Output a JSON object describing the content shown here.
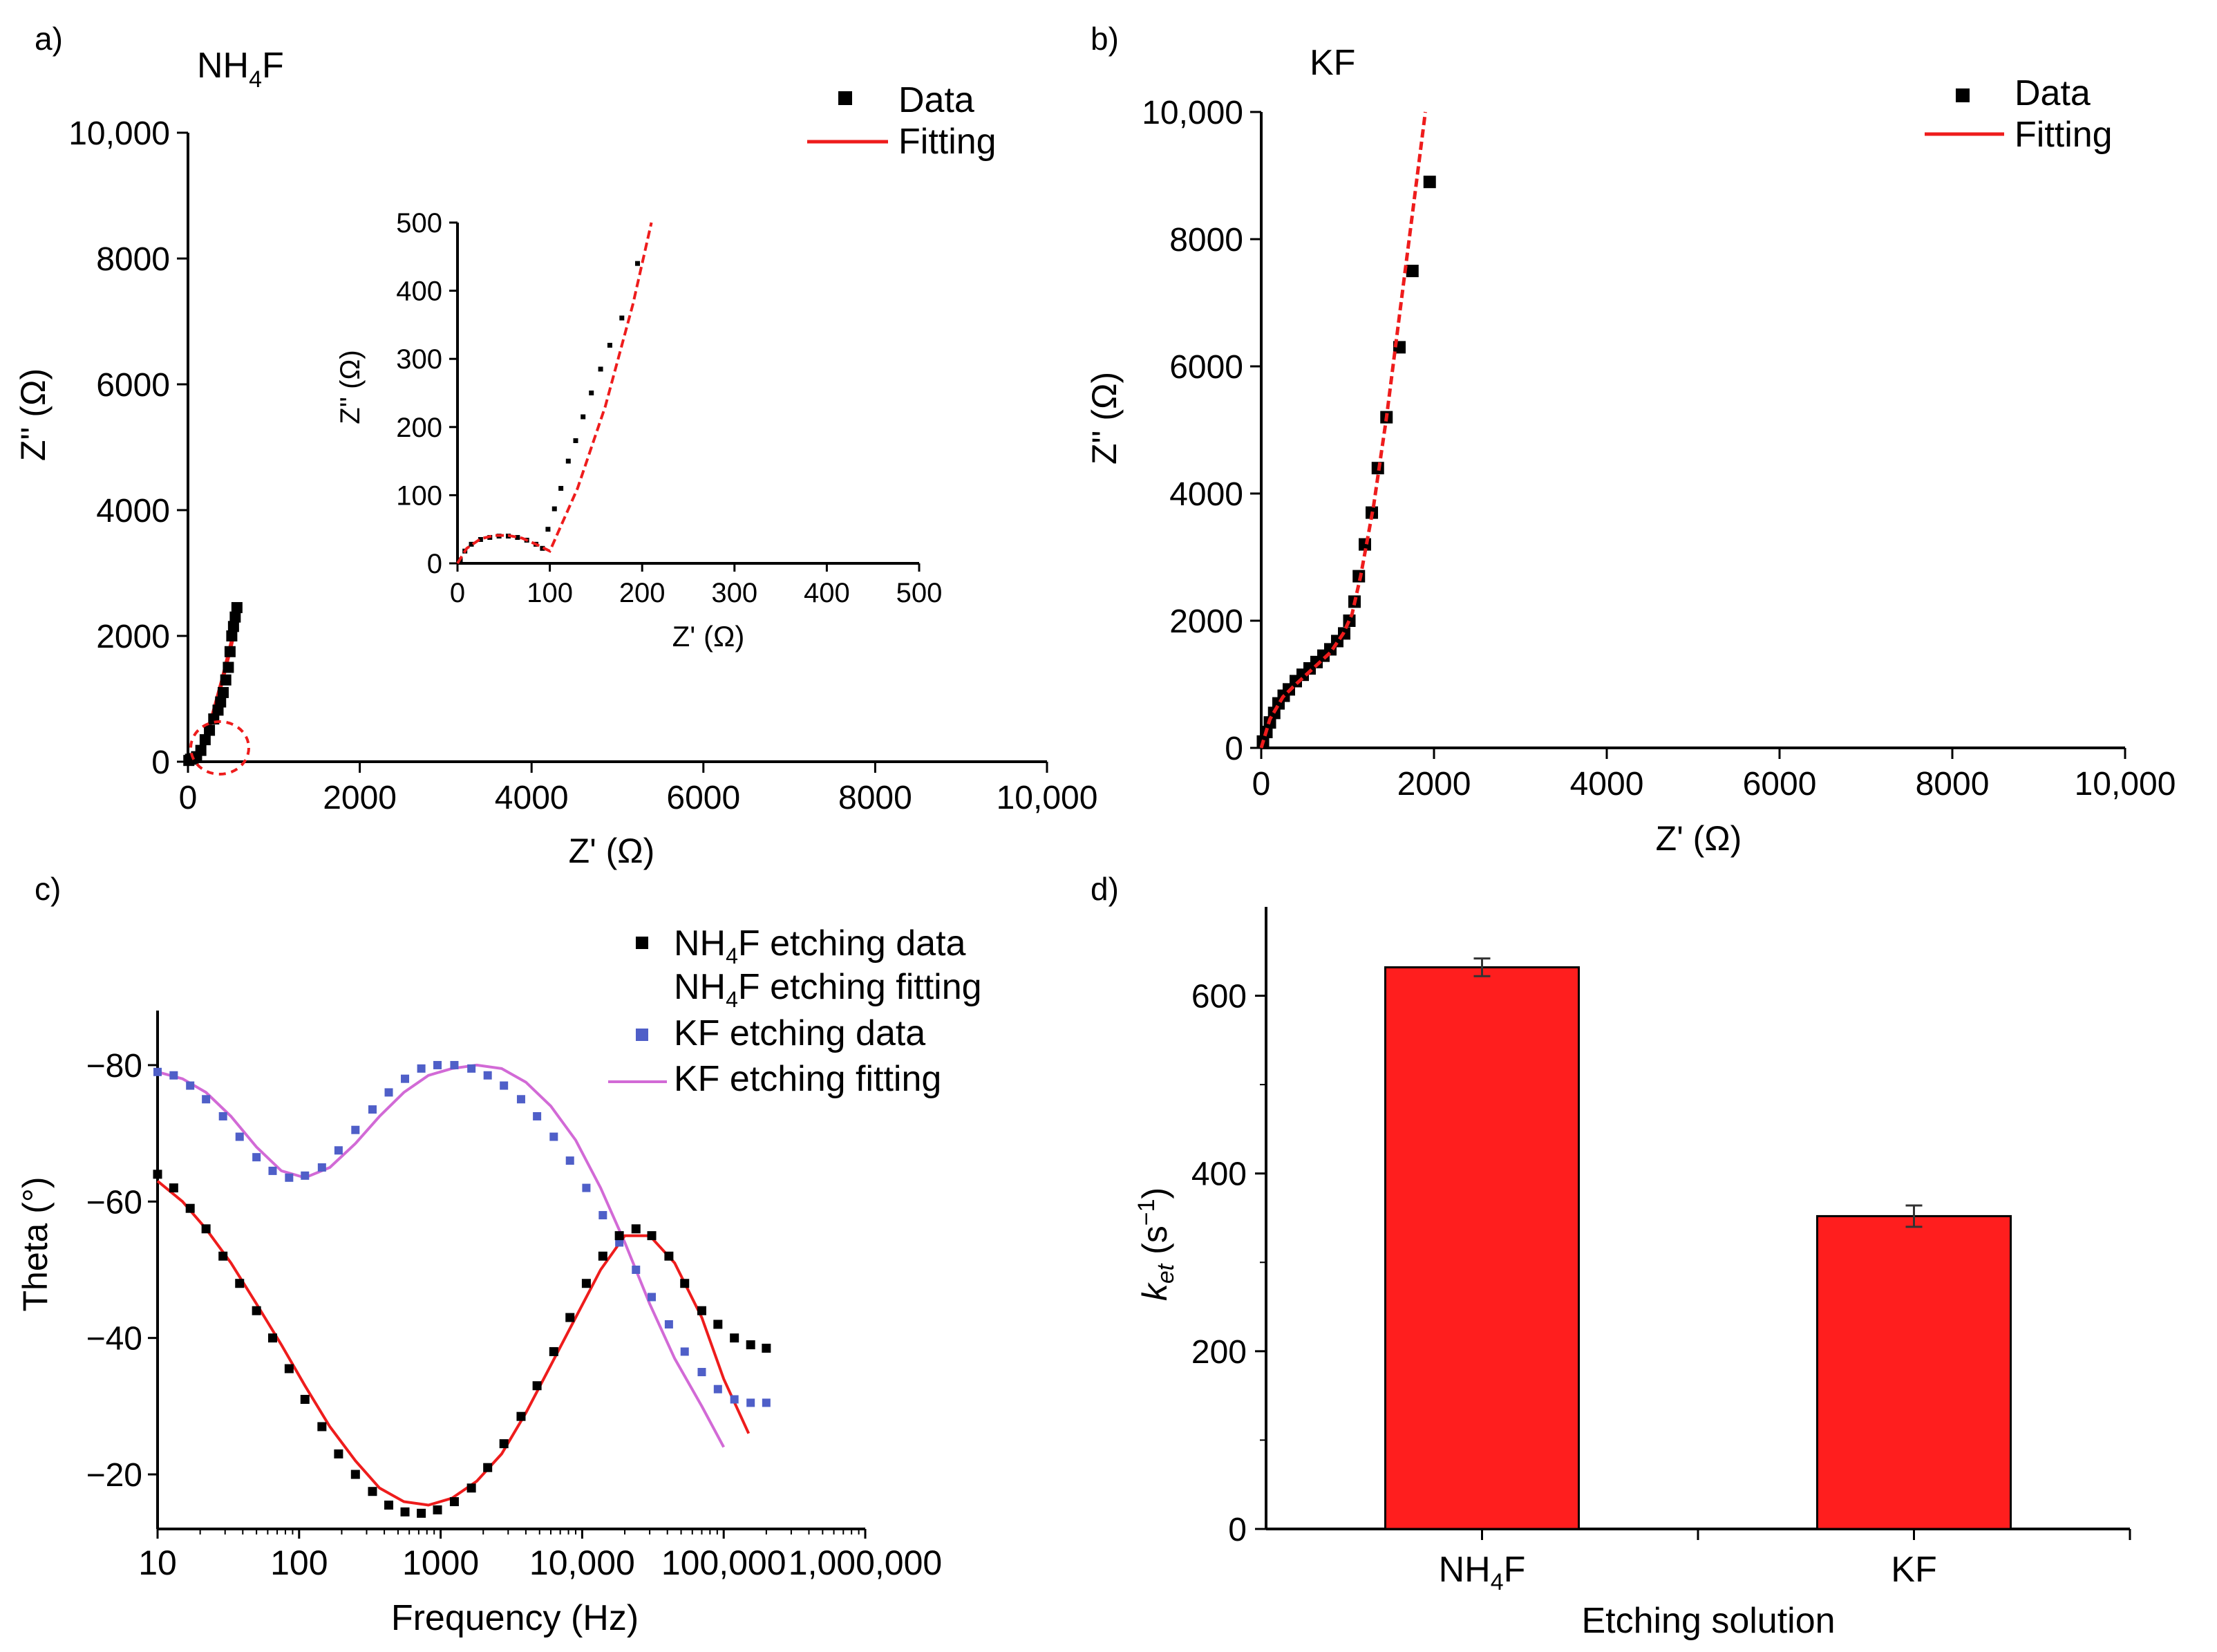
{
  "colors": {
    "fit_red": "#ee1c1c",
    "kf_blue": "#4f5fc8",
    "kf_fit_pink": "#d26ad6",
    "bar_red": "#ff1e1e",
    "black": "#000000"
  },
  "chart_data": [
    {
      "id": "a",
      "panel_label": "a)",
      "type": "scatter",
      "title": "NH₄F",
      "title_main": "NH",
      "title_sub": "4",
      "title_end": "F",
      "xlabel": "Z' (Ω)",
      "ylabel": "Z'' (Ω)",
      "xlim": [
        0,
        10000
      ],
      "ylim": [
        0,
        10000
      ],
      "xticks": [
        0,
        2000,
        4000,
        6000,
        8000,
        10000
      ],
      "yticks": [
        0,
        2000,
        4000,
        6000,
        8000,
        10000
      ],
      "xtick_labels": [
        "0",
        "2000",
        "4000",
        "6000",
        "8000",
        "10,000"
      ],
      "ytick_labels": [
        "0",
        "2000",
        "4000",
        "6000",
        "8000",
        "10,000"
      ],
      "legend": [
        "Data",
        "Fitting"
      ],
      "legend_position": "top-right",
      "annotation": "red dashed circle marks the zoomed region shown in the inset",
      "series": [
        {
          "name": "Data",
          "marker": "square",
          "color": "#000000",
          "x": [
            10,
            30,
            60,
            100,
            150,
            200,
            250,
            300,
            350,
            380,
            410,
            440,
            470,
            490,
            510,
            530,
            550,
            570
          ],
          "y": [
            20,
            40,
            50,
            80,
            180,
            350,
            500,
            680,
            820,
            950,
            1100,
            1300,
            1500,
            1750,
            2000,
            2150,
            2300,
            2450
          ]
        },
        {
          "name": "Fitting",
          "line": "solid",
          "color": "#ee1c1c",
          "x": [
            10,
            50,
            100,
            200,
            300,
            400,
            500,
            600
          ],
          "y": [
            20,
            40,
            40,
            350,
            800,
            1300,
            1850,
            2450
          ]
        }
      ],
      "inset": {
        "xlabel": "Z' (Ω)",
        "ylabel": "Z'' (Ω)",
        "xlim": [
          0,
          500
        ],
        "ylim": [
          0,
          500
        ],
        "xticks": [
          0,
          100,
          200,
          300,
          400,
          500
        ],
        "yticks": [
          0,
          100,
          200,
          300,
          400,
          500
        ],
        "series": [
          {
            "name": "Data",
            "marker": "square",
            "color": "#000000",
            "x": [
              3,
              8,
              15,
              25,
              35,
              45,
              55,
              65,
              75,
              85,
              92,
              98,
              105,
              112,
              120,
              128,
              136,
              145,
              155,
              165,
              178,
              195
            ],
            "y": [
              5,
              18,
              28,
              35,
              38,
              40,
              40,
              38,
              34,
              28,
              22,
              50,
              80,
              110,
              150,
              180,
              215,
              250,
              285,
              320,
              360,
              440
            ]
          },
          {
            "name": "Fitting",
            "line": "dashed",
            "color": "#ee1c1c",
            "x": [
              0,
              10,
              25,
              40,
              55,
              70,
              85,
              100,
              130,
              160,
              190,
              210
            ],
            "y": [
              0,
              22,
              36,
              41,
              41,
              37,
              28,
              18,
              110,
              230,
              380,
              500
            ]
          }
        ]
      }
    },
    {
      "id": "b",
      "panel_label": "b)",
      "type": "scatter",
      "title": "KF",
      "xlabel": "Z' (Ω)",
      "ylabel": "Z'' (Ω)",
      "xlim": [
        0,
        10000
      ],
      "ylim": [
        0,
        10000
      ],
      "xticks": [
        0,
        2000,
        4000,
        6000,
        8000,
        10000
      ],
      "yticks": [
        0,
        2000,
        4000,
        6000,
        8000,
        10000
      ],
      "xtick_labels": [
        "0",
        "2000",
        "4000",
        "6000",
        "8000",
        "10,000"
      ],
      "ytick_labels": [
        "0",
        "2000",
        "4000",
        "6000",
        "8000",
        "10,000"
      ],
      "legend": [
        "Data",
        "Fitting"
      ],
      "legend_position": "top-right",
      "series": [
        {
          "name": "Data",
          "marker": "square",
          "color": "#000000",
          "x": [
            20,
            60,
            100,
            150,
            200,
            260,
            320,
            400,
            480,
            560,
            640,
            720,
            800,
            880,
            960,
            1020,
            1080,
            1130,
            1200,
            1280,
            1350,
            1450,
            1600,
            1750,
            1950
          ],
          "y": [
            100,
            250,
            400,
            550,
            700,
            820,
            920,
            1050,
            1150,
            1250,
            1350,
            1450,
            1550,
            1680,
            1800,
            2000,
            2300,
            2700,
            3200,
            3700,
            4400,
            5200,
            6300,
            7500,
            8900
          ]
        },
        {
          "name": "Fitting",
          "line": "dashed",
          "color": "#ee1c1c",
          "x": [
            0,
            100,
            250,
            400,
            600,
            800,
            950,
            1050,
            1150,
            1300,
            1450,
            1600,
            1750,
            1900
          ],
          "y": [
            0,
            450,
            800,
            1000,
            1250,
            1500,
            1800,
            2100,
            2700,
            3800,
            5200,
            6800,
            8400,
            10000
          ]
        }
      ]
    },
    {
      "id": "c",
      "panel_label": "c)",
      "type": "line",
      "xlabel": "Frequency (Hz)",
      "ylabel": "Theta (°)",
      "x_scale": "log",
      "xlim": [
        10,
        1000000
      ],
      "ylim": [
        -88,
        -12
      ],
      "xticks": [
        10,
        100,
        1000,
        10000,
        100000,
        1000000
      ],
      "xtick_labels": [
        "10",
        "100",
        "1000",
        "10,000",
        "100,000",
        "1,000,000"
      ],
      "yticks": [
        -80,
        -60,
        -40,
        -20
      ],
      "ytick_labels": [
        "−80",
        "−60",
        "−40",
        "−20"
      ],
      "legend": [
        "NH₄F etching data",
        "NH₄F etching fitting",
        "KF etching data",
        "KF etching fitting"
      ],
      "legend_position": "top-right",
      "series": [
        {
          "name": "NH₄F etching data",
          "label_main": "NH",
          "label_sub": "4",
          "label_end": "F etching data",
          "marker": "square",
          "color": "#000000",
          "x": [
            10,
            13,
            17,
            22,
            29,
            38,
            50,
            65,
            85,
            110,
            145,
            190,
            250,
            330,
            430,
            560,
            730,
            950,
            1250,
            1650,
            2150,
            2800,
            3700,
            4800,
            6300,
            8200,
            10700,
            14000,
            18300,
            24000,
            31000,
            41000,
            53000,
            70000,
            91000,
            119000,
            155000,
            200000
          ],
          "y": [
            -64,
            -62,
            -59,
            -56,
            -52,
            -48,
            -44,
            -40,
            -35.5,
            -31,
            -27,
            -23,
            -20,
            -17.5,
            -15.5,
            -14.5,
            -14.3,
            -14.8,
            -16,
            -18,
            -21,
            -24.5,
            -28.5,
            -33,
            -38,
            -43,
            -48,
            -52,
            -55,
            -56,
            -55,
            -52,
            -48,
            -44,
            -42,
            -40,
            -39,
            -38.5
          ]
        },
        {
          "name": "NH₄F etching fitting",
          "label_main": "NH",
          "label_sub": "4",
          "label_end": "F etching fitting",
          "line": "solid",
          "color": "#ee1c1c",
          "x": [
            10,
            15,
            22,
            33,
            50,
            75,
            110,
            165,
            250,
            370,
            550,
            820,
            1200,
            1800,
            2700,
            4000,
            6000,
            9000,
            13500,
            20000,
            30000,
            45000,
            70000,
            100000,
            150000
          ],
          "y": [
            -63,
            -60,
            -56,
            -51,
            -45,
            -39,
            -33,
            -27,
            -22,
            -18,
            -16,
            -15.5,
            -16.5,
            -19,
            -23,
            -29,
            -36,
            -43,
            -50,
            -55,
            -55,
            -51,
            -43,
            -34,
            -26
          ]
        },
        {
          "name": "KF etching data",
          "marker": "square",
          "color": "#4f5fc8",
          "x": [
            10,
            13,
            17,
            22,
            29,
            38,
            50,
            65,
            85,
            110,
            145,
            190,
            250,
            330,
            430,
            560,
            730,
            950,
            1250,
            1650,
            2150,
            2800,
            3700,
            4800,
            6300,
            8200,
            10700,
            14000,
            18300,
            24000,
            31000,
            41000,
            53000,
            70000,
            91000,
            119000,
            155000,
            200000
          ],
          "y": [
            -79,
            -78.5,
            -77,
            -75,
            -72.5,
            -69.5,
            -66.5,
            -64.5,
            -63.5,
            -63.8,
            -65,
            -67.5,
            -70.5,
            -73.5,
            -76,
            -78,
            -79.5,
            -80,
            -80,
            -79.5,
            -78.5,
            -77,
            -75,
            -72.5,
            -69.5,
            -66,
            -62,
            -58,
            -54,
            -50,
            -46,
            -42,
            -38,
            -35,
            -32.5,
            -31,
            -30.5,
            -30.5
          ]
        },
        {
          "name": "KF etching fitting",
          "line": "solid",
          "color": "#d26ad6",
          "x": [
            10,
            15,
            22,
            33,
            50,
            75,
            110,
            165,
            250,
            370,
            550,
            820,
            1200,
            1800,
            2700,
            4000,
            6000,
            9000,
            13500,
            20000,
            30000,
            45000,
            70000,
            100000
          ],
          "y": [
            -79,
            -78,
            -76,
            -72.5,
            -68,
            -64.5,
            -63.5,
            -65,
            -68.5,
            -72.5,
            -76,
            -78.5,
            -79.5,
            -80,
            -79.5,
            -77.5,
            -74,
            -69,
            -62,
            -54,
            -45,
            -37,
            -30,
            -24
          ]
        }
      ]
    },
    {
      "id": "d",
      "panel_label": "d)",
      "type": "bar",
      "xlabel": "Etching solution",
      "ylabel": "k_et (s⁻¹)",
      "categories": [
        "NH₄F",
        "KF"
      ],
      "category_parts": [
        {
          "main": "NH",
          "sub": "4",
          "end": "F"
        },
        {
          "main": "KF",
          "sub": "",
          "end": ""
        }
      ],
      "values": [
        632,
        352
      ],
      "errors": [
        10,
        12
      ],
      "ylim": [
        0,
        700
      ],
      "yticks": [
        0,
        200,
        400,
        600
      ],
      "ytick_labels": [
        "0",
        "200",
        "400",
        "600"
      ]
    }
  ]
}
